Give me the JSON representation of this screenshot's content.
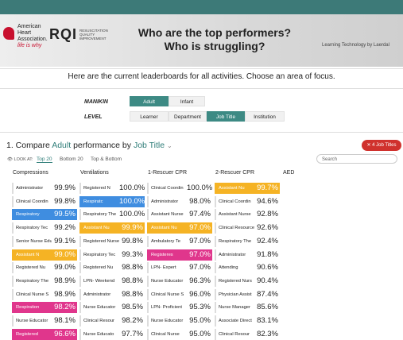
{
  "header": {
    "org": "American Heart Association.",
    "tagline": "life is why",
    "product": "RQI",
    "product_sub": "RESUSCITATION QUALITY IMPROVEMENT",
    "title_line1": "Who are the top performers?",
    "title_line2": "Who is struggling?",
    "credit": "Learning Technology by Laerdal"
  },
  "intro": "Here are the current leaderboards for all activities. Choose an area of focus.",
  "filters": {
    "manikin_label": "MANIKIN",
    "manikin_options": [
      "Adult",
      "Infant"
    ],
    "manikin_selected": 0,
    "level_label": "LEVEL",
    "level_options": [
      "Learner",
      "Department",
      "Job Title",
      "Institution"
    ],
    "level_selected": 2
  },
  "compare": {
    "prefix": "1. Compare",
    "manikin": "Adult",
    "middle": "performance by",
    "level": "Job Title",
    "filter_pill": "✕ 4 Job Titles"
  },
  "view": {
    "look_at": "👁 LOOK AT:",
    "tabs": [
      "Top 20",
      "Bottom 20",
      "Top & Bottom"
    ],
    "selected": 0,
    "search": "Search"
  },
  "columns": [
    {
      "name": "Compressions",
      "rows": [
        {
          "label": "Administrator",
          "value": "99.9%"
        },
        {
          "label": "Clinical Coordin",
          "value": "99.8%"
        },
        {
          "label": "Respiratory",
          "value": "99.5%",
          "highlight": "#3f8de0"
        },
        {
          "label": "Respiratory Tec",
          "value": "99.2%"
        },
        {
          "label": "Senior Nurse Edu",
          "value": "99.1%"
        },
        {
          "label": "Assistant N",
          "value": "99.0%",
          "highlight": "#f5b324"
        },
        {
          "label": "Registered Nu",
          "value": "99.0%"
        },
        {
          "label": "Respiratory The",
          "value": "98.9%"
        },
        {
          "label": "Clinical Nurse S",
          "value": "98.9%"
        },
        {
          "label": "Respiration",
          "value": "98.2%",
          "highlight": "#e0368c"
        },
        {
          "label": "Nurse Educator",
          "value": "98.1%"
        },
        {
          "label": "Registered",
          "value": "96.6%",
          "highlight": "#e0368c"
        }
      ]
    },
    {
      "name": "Ventilations",
      "rows": [
        {
          "label": "Registered N",
          "value": "100.0%"
        },
        {
          "label": "Respiratc",
          "value": "100.0%",
          "highlight": "#3f8de0"
        },
        {
          "label": "Respiratory The",
          "value": "100.0%"
        },
        {
          "label": "Assistant Nu",
          "value": "99.9%",
          "highlight": "#f5b324"
        },
        {
          "label": "Registered Nurse",
          "value": "99.8%"
        },
        {
          "label": "Respiratory Tec",
          "value": "99.3%"
        },
        {
          "label": "Registered Nu",
          "value": "98.8%"
        },
        {
          "label": "LPN- Weekend",
          "value": "98.8%"
        },
        {
          "label": "Administrator",
          "value": "98.8%"
        },
        {
          "label": "Nurse Educator",
          "value": "98.5%"
        },
        {
          "label": "Clinical Resour",
          "value": "98.2%"
        },
        {
          "label": "Nurse Educato",
          "value": "97.7%"
        }
      ]
    },
    {
      "name": "1-Rescuer CPR",
      "rows": [
        {
          "label": "Clinical Coordin",
          "value": "100.0%"
        },
        {
          "label": "Administrator",
          "value": "98.0%"
        },
        {
          "label": "Assistant Nurse",
          "value": "97.4%"
        },
        {
          "label": "Assistant Nu",
          "value": "97.0%",
          "highlight": "#f5b324"
        },
        {
          "label": "Ambulatory Te",
          "value": "97.0%"
        },
        {
          "label": "Registeres",
          "value": "97.0%",
          "highlight": "#e0368c"
        },
        {
          "label": "LPN- Expert",
          "value": "97.0%"
        },
        {
          "label": "Nurse Educator",
          "value": "96.3%"
        },
        {
          "label": "Clinical Nurse S",
          "value": "96.0%"
        },
        {
          "label": "LPN- Proficient",
          "value": "95.3%"
        },
        {
          "label": "Nurse Educator",
          "value": "95.0%"
        },
        {
          "label": "Clinical Nurse",
          "value": "95.0%"
        }
      ]
    },
    {
      "name": "2-Rescuer CPR",
      "rows": [
        {
          "label": "Assistant Nu",
          "value": "99.7%",
          "highlight": "#f5b324"
        },
        {
          "label": "Clinical Coordin",
          "value": "94.6%"
        },
        {
          "label": "Assistant Nurse",
          "value": "92.8%"
        },
        {
          "label": "Clinical Resource",
          "value": "92.6%"
        },
        {
          "label": "Respiratory The",
          "value": "92.4%"
        },
        {
          "label": "Administrator",
          "value": "91.8%"
        },
        {
          "label": "Attending",
          "value": "90.6%"
        },
        {
          "label": "Registered Nurs",
          "value": "90.4%"
        },
        {
          "label": "Physician Assist",
          "value": "87.4%"
        },
        {
          "label": "Nurse Manager",
          "value": "85.6%"
        },
        {
          "label": "Associate Direct",
          "value": "83.1%"
        },
        {
          "label": "Clinical Resour",
          "value": "82.3%"
        }
      ]
    },
    {
      "name": "AED",
      "rows": []
    }
  ]
}
